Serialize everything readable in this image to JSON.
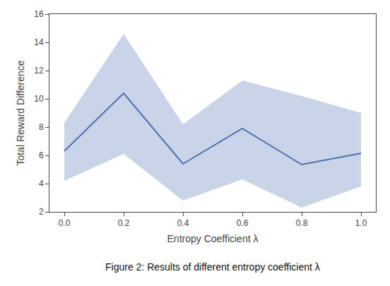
{
  "chart_data": {
    "type": "line",
    "x": [
      0.0,
      0.2,
      0.4,
      0.6,
      0.8,
      1.0
    ],
    "series": [
      {
        "values": [
          6.3,
          10.4,
          5.4,
          7.9,
          5.35,
          6.15
        ],
        "color": "#4C72B0",
        "band": {
          "upper": [
            8.3,
            14.6,
            8.2,
            11.3,
            10.2,
            9.0
          ],
          "lower": [
            4.2,
            6.1,
            2.8,
            4.3,
            2.3,
            3.8
          ],
          "color": "#C9D4E8"
        }
      }
    ],
    "xlabel": "Entropy Coefficient λ",
    "ylabel": "Total Reward Difference",
    "caption": "Figure 2: Results of different entropy coefficient λ",
    "xlim": [
      -0.05,
      1.05
    ],
    "ylim": [
      2,
      16
    ],
    "xticks": [
      {
        "value": 0.0,
        "label": "0.0"
      },
      0.2,
      0.4,
      0.6,
      0.8,
      {
        "value": 1.0,
        "label": "1.0"
      }
    ],
    "yticks": [
      2,
      4,
      6,
      8,
      10,
      12,
      14,
      16
    ],
    "grid": false
  }
}
